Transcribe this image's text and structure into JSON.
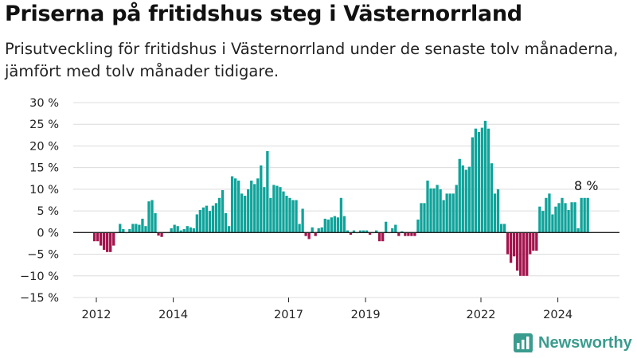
{
  "header": {
    "title": "Priserna på fritidshus steg i Västernorrland",
    "subtitle": "Prisutveckling för fritidshus i Västernorrland under de senaste tolv månaderna, jämfört med tolv månader tidigare."
  },
  "brand": {
    "name": "Newsworthy",
    "color": "#3a9c8e",
    "icon": "bar-chart-icon"
  },
  "colors": {
    "positive": "#0fa39a",
    "negative": "#a3144d",
    "grid": "#dcdcdc"
  },
  "chart_data": {
    "type": "bar",
    "title": "Priserna på fritidshus steg i Västernorrland",
    "xlabel": "",
    "ylabel": "",
    "ylim": [
      -15,
      30
    ],
    "y_ticks": [
      30,
      25,
      20,
      15,
      10,
      5,
      0,
      -5,
      -10,
      -15
    ],
    "y_tick_labels": [
      "30 %",
      "25 %",
      "20 %",
      "15 %",
      "10 %",
      "5 %",
      "0 %",
      "−5 %",
      "−10 %",
      "−15 %"
    ],
    "x_tick_labels": [
      "2012",
      "2014",
      "2017",
      "2019",
      "2022",
      "2024"
    ],
    "x_tick_values": [
      2012,
      2014,
      2017,
      2019,
      2022,
      2024
    ],
    "x_start": 2011.95,
    "x_step": 0.0833,
    "values": [
      -2,
      -2,
      -3,
      -4,
      -4.5,
      -4.5,
      -3,
      0,
      2,
      0.8,
      0,
      0.8,
      2,
      2,
      1.8,
      3.2,
      1.5,
      7.2,
      7.5,
      4.5,
      -0.7,
      -1,
      0,
      0,
      1,
      1.8,
      1.5,
      0.5,
      0.8,
      1.5,
      1.2,
      1,
      4.2,
      5.2,
      5.8,
      6.2,
      5,
      6.2,
      6.8,
      8,
      9.8,
      4.5,
      1.5,
      13,
      12.5,
      12,
      9,
      8.5,
      10,
      12,
      11.2,
      12.5,
      15.5,
      10.5,
      18.8,
      8,
      11,
      10.8,
      10.5,
      9.5,
      8.5,
      8,
      7.5,
      7.5,
      2,
      5.5,
      -0.8,
      -1.5,
      1.2,
      -0.8,
      1,
      1.2,
      3.2,
      3,
      3.5,
      3.8,
      3.5,
      8,
      3.8,
      0.5,
      -0.5,
      0.5,
      0,
      0.5,
      0.5,
      0.5,
      -0.5,
      0,
      0.5,
      -2,
      -2,
      2.5,
      0,
      1,
      1.8,
      -0.8,
      0.3,
      -0.8,
      -0.8,
      -0.8,
      -0.8,
      3,
      6.8,
      6.8,
      12,
      10.2,
      10.2,
      11,
      10,
      7.5,
      9,
      9,
      9,
      11,
      17,
      15.5,
      14.5,
      15.2,
      22,
      24,
      23.2,
      24.2,
      25.8,
      24,
      16,
      9,
      10,
      2,
      2,
      -5,
      -7,
      -5.5,
      -8.8,
      -10,
      -10,
      -10,
      -5,
      -4.2,
      -4.2,
      6,
      5,
      8,
      9,
      4.2,
      6,
      6.8,
      8,
      6.8,
      5.2,
      7,
      7,
      1,
      8,
      8,
      8
    ],
    "annotations": [
      {
        "text": "8 %",
        "x_index": 154,
        "value": 8
      }
    ]
  }
}
